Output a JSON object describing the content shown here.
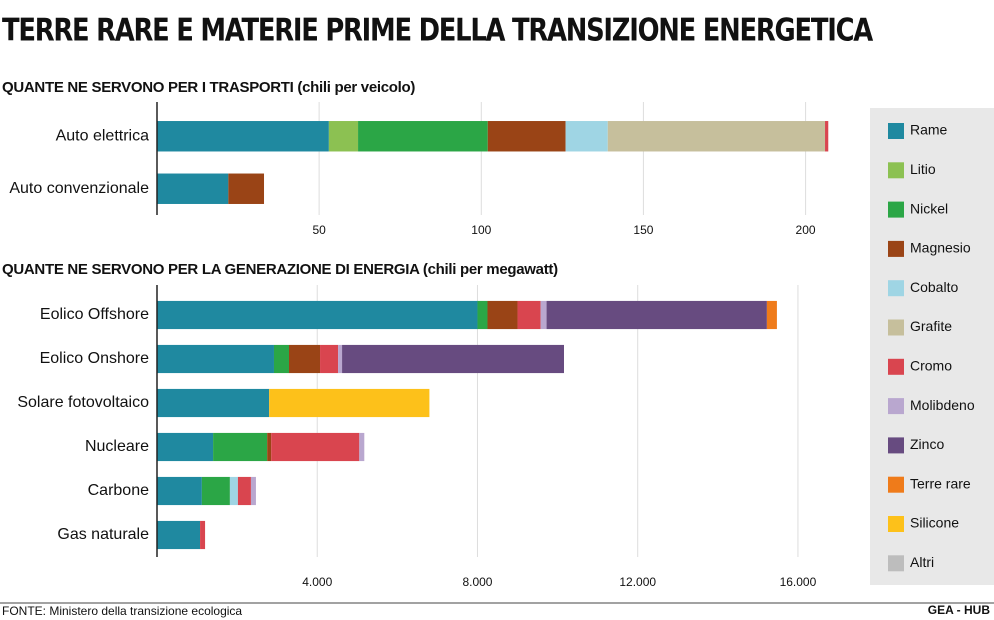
{
  "title": "TERRE RARE E MATERIE PRIME DELLA TRANSIZIONE ENERGETICA",
  "legend": [
    {
      "name": "Rame",
      "color": "#1f89a0"
    },
    {
      "name": "Litio",
      "color": "#8cc152"
    },
    {
      "name": "Nickel",
      "color": "#2ba646"
    },
    {
      "name": "Magnesio",
      "color": "#9a4416"
    },
    {
      "name": "Cobalto",
      "color": "#9fd5e4"
    },
    {
      "name": "Grafite",
      "color": "#c6bf9c"
    },
    {
      "name": "Cromo",
      "color": "#d9454f"
    },
    {
      "name": "Molibdeno",
      "color": "#b9a7cf"
    },
    {
      "name": "Zinco",
      "color": "#674b80"
    },
    {
      "name": "Terre rare",
      "color": "#ef7b1a"
    },
    {
      "name": "Silicone",
      "color": "#fdc11a"
    },
    {
      "name": "Altri",
      "color": "#bdbdbd"
    }
  ],
  "chart_data": [
    {
      "type": "bar",
      "orientation": "horizontal",
      "stacked": true,
      "grid": true,
      "subtitle": "QUANTE NE SERVONO PER I TRASPORTI (chili per veicolo)",
      "categories": [
        "Auto elettrica",
        "Auto convenzionale"
      ],
      "xlim": [
        0,
        210
      ],
      "xticks": [
        50,
        100,
        150,
        200
      ],
      "series": [
        {
          "name": "Rame",
          "color": "#1f89a0",
          "values": [
            53,
            22
          ]
        },
        {
          "name": "Litio",
          "color": "#8cc152",
          "values": [
            9,
            null
          ]
        },
        {
          "name": "Nickel",
          "color": "#2ba646",
          "values": [
            40,
            null
          ]
        },
        {
          "name": "Magnesio",
          "color": "#9a4416",
          "values": [
            24,
            11
          ]
        },
        {
          "name": "Cobalto",
          "color": "#9fd5e4",
          "values": [
            13,
            null
          ]
        },
        {
          "name": "Grafite",
          "color": "#c6bf9c",
          "values": [
            67,
            null
          ]
        },
        {
          "name": "Cromo",
          "color": "#d9454f",
          "values": [
            1,
            null
          ]
        }
      ]
    },
    {
      "type": "bar",
      "orientation": "horizontal",
      "stacked": true,
      "grid": true,
      "subtitle": "QUANTE NE SERVONO PER LA GENERAZIONE DI ENERGIA (chili per megawatt)",
      "categories": [
        "Eolico Offshore",
        "Eolico Onshore",
        "Solare fotovoltaico",
        "Nucleare",
        "Carbone",
        "Gas naturale"
      ],
      "xlim": [
        0,
        17000
      ],
      "xticks": [
        {
          "value": 4000,
          "label": "4.000"
        },
        {
          "value": 8000,
          "label": "8.000"
        },
        {
          "value": 12000,
          "label": "12.000"
        },
        {
          "value": 16000,
          "label": "16.000"
        }
      ],
      "series": [
        {
          "name": "Rame",
          "color": "#1f89a0",
          "values": [
            8000,
            2920,
            2800,
            1400,
            1120,
            1075
          ]
        },
        {
          "name": "Nickel",
          "color": "#2ba646",
          "values": [
            250,
            375,
            null,
            1350,
            700,
            null
          ]
        },
        {
          "name": "Magnesio",
          "color": "#9a4416",
          "values": [
            750,
            775,
            null,
            100,
            null,
            null
          ]
        },
        {
          "name": "Cobalto",
          "color": "#9fd5e4",
          "values": [
            null,
            null,
            null,
            null,
            200,
            null
          ]
        },
        {
          "name": "Cromo",
          "color": "#d9454f",
          "values": [
            575,
            450,
            null,
            2200,
            325,
            125
          ]
        },
        {
          "name": "Molibdeno",
          "color": "#b9a7cf",
          "values": [
            150,
            100,
            null,
            125,
            125,
            null
          ]
        },
        {
          "name": "Zinco",
          "color": "#674b80",
          "values": [
            5500,
            5540,
            null,
            null,
            null,
            null
          ]
        },
        {
          "name": "Terre rare",
          "color": "#ef7b1a",
          "values": [
            250,
            null,
            null,
            null,
            null,
            null
          ]
        },
        {
          "name": "Silicone",
          "color": "#fdc11a",
          "values": [
            null,
            null,
            4000,
            null,
            null,
            null
          ]
        }
      ]
    }
  ],
  "source": "FONTE: Ministero della transizione ecologica",
  "brand": "GEA - HUB"
}
